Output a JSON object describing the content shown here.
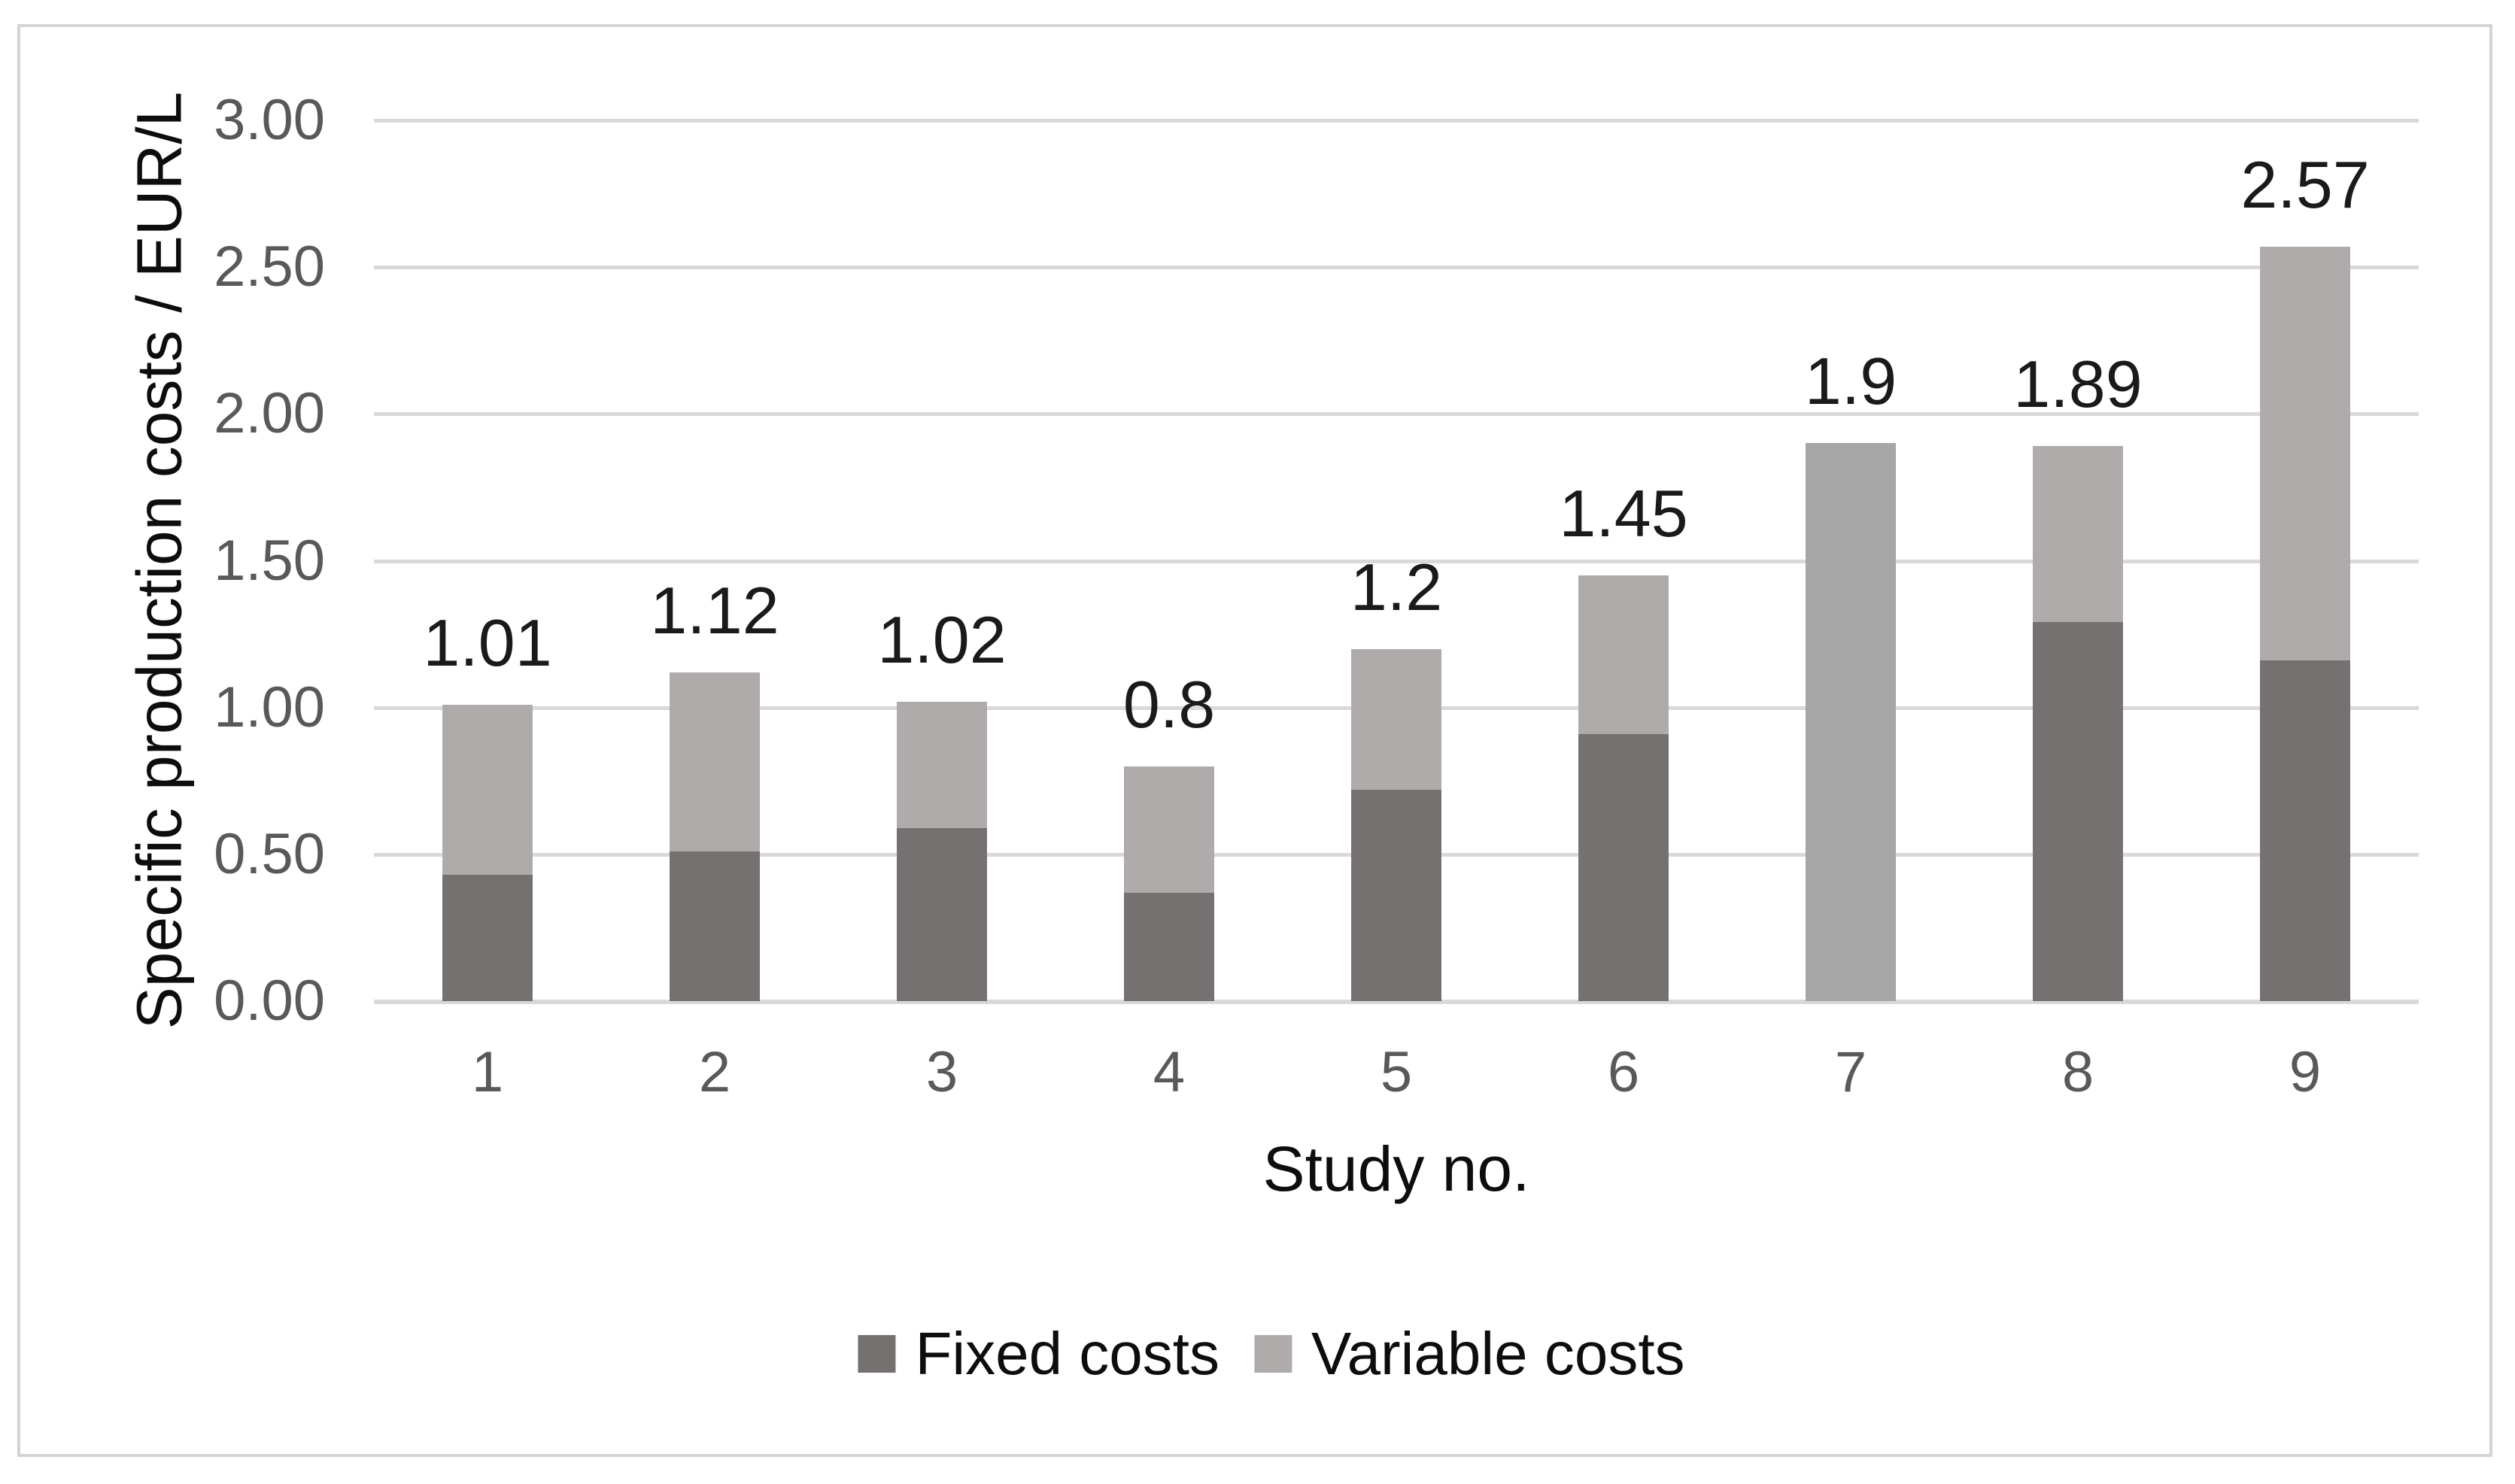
{
  "chart_data": {
    "type": "bar",
    "stacked": true,
    "orientation": "vertical",
    "categories": [
      "1",
      "2",
      "3",
      "4",
      "5",
      "6",
      "7",
      "8",
      "9"
    ],
    "series": [
      {
        "name": "Fixed costs",
        "color": "#767171",
        "values": [
          0.43,
          0.51,
          0.59,
          0.37,
          0.72,
          0.91,
          0.0,
          1.29,
          1.16
        ]
      },
      {
        "name": "Variable costs",
        "color": "#AFABAB",
        "values": [
          0.58,
          0.61,
          0.43,
          0.43,
          0.48,
          0.54,
          1.9,
          0.6,
          1.41
        ]
      }
    ],
    "segment_color_overrides": [
      {
        "series": 1,
        "category_index": 6,
        "color": "#A6A6A6"
      }
    ],
    "totals": [
      1.01,
      1.12,
      1.02,
      0.8,
      1.2,
      1.45,
      1.9,
      1.89,
      2.57
    ],
    "total_labels": [
      "1.01",
      "1.12",
      "1.02",
      "0.8",
      "1.2",
      "1.45",
      "1.9",
      "1.89",
      "2.57"
    ],
    "xlabel": "Study no.",
    "ylabel": "Specific production costs / EUR/L",
    "ylim": [
      0,
      3
    ],
    "ytick_labels": [
      "3.00",
      "2.50",
      "2.00",
      "1.50",
      "1.00",
      "0.50",
      "0.00"
    ],
    "grid": true,
    "legend_position": "bottom"
  },
  "colors": {
    "fixed_series": "#767171",
    "variable_series": "#AFABAB",
    "bar7_variable": "#A6A6A6",
    "gridline": "#D9D9D9",
    "tick_label": "#595959",
    "data_label": "#1A1A1A",
    "axis_title": "#0D0D0D",
    "frame_border": "#D4D4D4"
  }
}
